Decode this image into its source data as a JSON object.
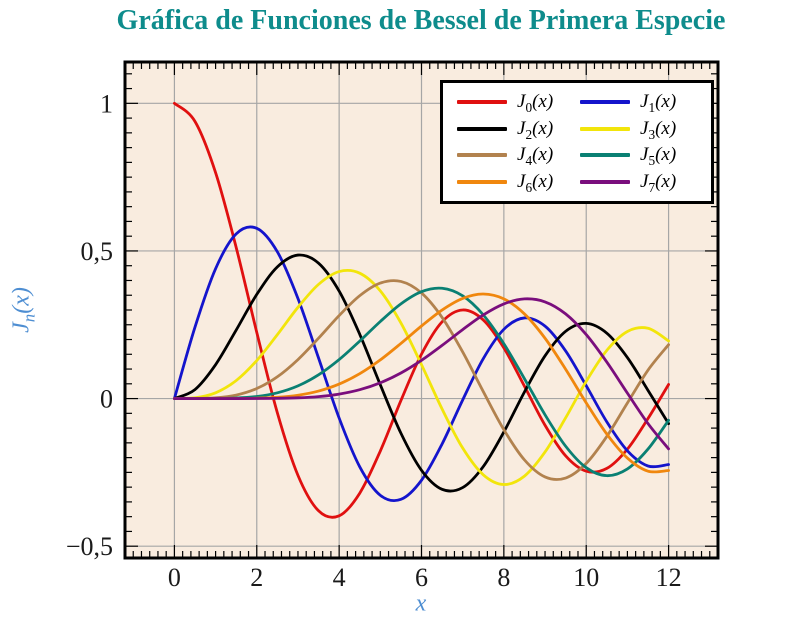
{
  "title": {
    "text": "Gráfica de Funciones de Bessel de Primera Especie",
    "color": "#0e8c8c"
  },
  "labels": {
    "x": "x",
    "y_base": "J",
    "y_sub": "n",
    "y_arg": "(x)",
    "color": "#4e8ed2"
  },
  "styles": {
    "plot_bg": "#f9ecdf",
    "grid_color": "#a6a6a6",
    "frame_color": "#000000",
    "tick_color": "#000000",
    "legend_bg": "#ffffff",
    "legend_border": "#000000"
  },
  "legend": {
    "position": "top-right",
    "items": [
      {
        "base": "J",
        "sub": "0",
        "arg": "(x)"
      },
      {
        "base": "J",
        "sub": "1",
        "arg": "(x)"
      },
      {
        "base": "J",
        "sub": "2",
        "arg": "(x)"
      },
      {
        "base": "J",
        "sub": "3",
        "arg": "(x)"
      },
      {
        "base": "J",
        "sub": "4",
        "arg": "(x)"
      },
      {
        "base": "J",
        "sub": "5",
        "arg": "(x)"
      },
      {
        "base": "J",
        "sub": "6",
        "arg": "(x)"
      },
      {
        "base": "J",
        "sub": "7",
        "arg": "(x)"
      }
    ]
  },
  "chart_data": {
    "type": "line",
    "title": "Gráfica de Funciones de Bessel de Primera Especie",
    "xlabel": "x",
    "ylabel": "J_n(x)",
    "grid": true,
    "legend_position": "top-right",
    "axes": {
      "x": {
        "lim": [
          -1.2,
          13.2
        ],
        "minor_step": 0.2,
        "major_ticks": [
          {
            "v": 0,
            "label": "0"
          },
          {
            "v": 2,
            "label": "2"
          },
          {
            "v": 4,
            "label": "4"
          },
          {
            "v": 6,
            "label": "6"
          },
          {
            "v": 8,
            "label": "8"
          },
          {
            "v": 10,
            "label": "10"
          },
          {
            "v": 12,
            "label": "12"
          }
        ]
      },
      "y": {
        "lim": [
          -0.54,
          1.14
        ],
        "minor_step": 0.05,
        "major_ticks": [
          {
            "v": 1,
            "label": "1"
          },
          {
            "v": 0.5,
            "label": "0,5"
          },
          {
            "v": 0,
            "label": "0"
          },
          {
            "v": -0.5,
            "label": "−0,5"
          }
        ]
      }
    },
    "x": [
      0,
      0.5,
      1,
      1.5,
      2,
      2.5,
      3,
      3.5,
      4,
      4.5,
      5,
      5.5,
      6,
      6.5,
      7,
      7.5,
      8,
      8.5,
      9,
      9.5,
      10,
      10.5,
      11,
      11.5,
      12
    ],
    "series": [
      {
        "name": "J_0(x)",
        "color": "#e01010",
        "values": [
          1,
          0.9385,
          0.7652,
          0.5118,
          0.2239,
          -0.0484,
          -0.2601,
          -0.3801,
          -0.3971,
          -0.3205,
          -0.1776,
          -0.0068,
          0.1506,
          0.2601,
          0.3001,
          0.2663,
          0.1717,
          0.0419,
          -0.0903,
          -0.1939,
          -0.2459,
          -0.2366,
          -0.1712,
          -0.0677,
          0.0477
        ]
      },
      {
        "name": "J_1(x)",
        "color": "#1414cc",
        "values": [
          0,
          0.2423,
          0.4401,
          0.5579,
          0.5767,
          0.4971,
          0.3391,
          0.1374,
          -0.066,
          -0.2311,
          -0.3276,
          -0.3414,
          -0.2767,
          -0.1538,
          -0.0047,
          0.1352,
          0.2346,
          0.2731,
          0.2453,
          0.1613,
          0.0435,
          -0.0789,
          -0.1768,
          -0.2284,
          -0.2234
        ]
      },
      {
        "name": "J_2(x)",
        "color": "#000000",
        "values": [
          0,
          0.0306,
          0.1149,
          0.2321,
          0.3528,
          0.4461,
          0.4861,
          0.4586,
          0.3641,
          0.2178,
          0.0466,
          -0.1173,
          -0.2429,
          -0.3074,
          -0.3014,
          -0.2303,
          -0.113,
          0.0223,
          0.1448,
          0.2279,
          0.2546,
          0.2216,
          0.139,
          0.0279,
          -0.0849
        ]
      },
      {
        "name": "J_3(x)",
        "color": "#f2e50b",
        "values": [
          0,
          0.0026,
          0.0196,
          0.061,
          0.1289,
          0.2166,
          0.3091,
          0.3868,
          0.4302,
          0.4247,
          0.3648,
          0.2561,
          0.1148,
          -0.0353,
          -0.1676,
          -0.2581,
          -0.2911,
          -0.2626,
          -0.1809,
          -0.0653,
          0.0584,
          0.1633,
          0.2273,
          0.2381,
          0.1951
        ]
      },
      {
        "name": "J_4(x)",
        "color": "#b2824e",
        "values": [
          0,
          0.0002,
          0.0025,
          0.0118,
          0.034,
          0.0738,
          0.132,
          0.2044,
          0.2811,
          0.3484,
          0.3912,
          0.3967,
          0.3576,
          0.2748,
          0.1578,
          0.0238,
          -0.1054,
          -0.2077,
          -0.2655,
          -0.2691,
          -0.2196,
          -0.1283,
          -0.015,
          0.0963,
          0.1825
        ]
      },
      {
        "name": "J_5(x)",
        "color": "#0a8073",
        "values": [
          0,
          0,
          0.0002,
          0.0018,
          0.007,
          0.0195,
          0.043,
          0.0804,
          0.1321,
          0.1947,
          0.2611,
          0.3209,
          0.3621,
          0.3736,
          0.3479,
          0.2835,
          0.1858,
          0.0671,
          -0.055,
          -0.1613,
          -0.2341,
          -0.2611,
          -0.2383,
          -0.1711,
          -0.0735
        ]
      },
      {
        "name": "J_6(x)",
        "color": "#f0870e",
        "values": [
          0,
          0,
          0,
          0.0002,
          0.0012,
          0.0042,
          0.0114,
          0.0254,
          0.0491,
          0.0843,
          0.131,
          0.1868,
          0.2458,
          0.2999,
          0.3392,
          0.3541,
          0.3376,
          0.2867,
          0.2043,
          0.0993,
          -0.0145,
          -0.1203,
          -0.2016,
          -0.246,
          -0.2437
        ]
      },
      {
        "name": "J_7(x)",
        "color": "#7a0e7d",
        "values": [
          0,
          0,
          0,
          0,
          0.0002,
          0.0008,
          0.0025,
          0.0067,
          0.0152,
          0.03,
          0.0534,
          0.0866,
          0.1296,
          0.1801,
          0.2336,
          0.2832,
          0.3206,
          0.3376,
          0.3275,
          0.2868,
          0.2167,
          0.1236,
          0.0184,
          -0.0846,
          -0.1703
        ]
      }
    ]
  }
}
